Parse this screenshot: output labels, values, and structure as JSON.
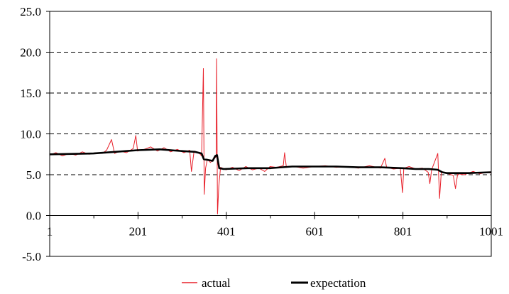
{
  "chart_data": {
    "type": "line",
    "title": "",
    "xlabel": "",
    "ylabel": "",
    "xlim": [
      1,
      1001
    ],
    "ylim": [
      -5,
      25
    ],
    "y_ticks": [
      -5,
      0,
      5,
      10,
      15,
      20,
      25
    ],
    "y_tick_labels": [
      "-5.0",
      "0.0",
      "5.0",
      "10.0",
      "15.0",
      "20.0",
      "25.0"
    ],
    "x_ticks": [
      1,
      201,
      401,
      601,
      801,
      1001
    ],
    "x_tick_labels": [
      "1",
      "201",
      "401",
      "601",
      "801",
      "1001"
    ],
    "grid": "horizontal dashed at 5, 10, 15, 20",
    "legend_position": "bottom",
    "series": [
      {
        "name": "actual",
        "color": "#e8202a",
        "points": [
          [
            1,
            7.4
          ],
          [
            15,
            7.7
          ],
          [
            30,
            7.3
          ],
          [
            45,
            7.6
          ],
          [
            60,
            7.4
          ],
          [
            75,
            7.8
          ],
          [
            90,
            7.5
          ],
          [
            105,
            7.7
          ],
          [
            120,
            7.6
          ],
          [
            130,
            8.0
          ],
          [
            141,
            9.3
          ],
          [
            148,
            7.6
          ],
          [
            160,
            7.9
          ],
          [
            175,
            7.7
          ],
          [
            190,
            8.2
          ],
          [
            196,
            9.8
          ],
          [
            200,
            7.9
          ],
          [
            215,
            8.1
          ],
          [
            230,
            8.4
          ],
          [
            245,
            7.9
          ],
          [
            260,
            8.3
          ],
          [
            275,
            7.8
          ],
          [
            290,
            8.1
          ],
          [
            305,
            7.7
          ],
          [
            318,
            8.0
          ],
          [
            322,
            5.4
          ],
          [
            328,
            7.9
          ],
          [
            340,
            7.6
          ],
          [
            345,
            7.3
          ],
          [
            349,
            18.0
          ],
          [
            351,
            2.6
          ],
          [
            354,
            5.8
          ],
          [
            358,
            6.9
          ],
          [
            365,
            6.5
          ],
          [
            372,
            6.9
          ],
          [
            378,
            7.2
          ],
          [
            379,
            19.2
          ],
          [
            381,
            0.2
          ],
          [
            384,
            3.6
          ],
          [
            388,
            5.9
          ],
          [
            400,
            5.6
          ],
          [
            415,
            5.9
          ],
          [
            430,
            5.5
          ],
          [
            445,
            6.0
          ],
          [
            460,
            5.6
          ],
          [
            475,
            5.8
          ],
          [
            488,
            5.4
          ],
          [
            500,
            6.0
          ],
          [
            515,
            5.9
          ],
          [
            530,
            6.1
          ],
          [
            533,
            7.7
          ],
          [
            537,
            5.9
          ],
          [
            555,
            6.0
          ],
          [
            575,
            5.8
          ],
          [
            600,
            6.0
          ],
          [
            625,
            6.1
          ],
          [
            650,
            5.9
          ],
          [
            675,
            6.0
          ],
          [
            700,
            5.8
          ],
          [
            725,
            6.1
          ],
          [
            750,
            5.8
          ],
          [
            760,
            7.0
          ],
          [
            764,
            5.9
          ],
          [
            780,
            5.7
          ],
          [
            795,
            5.8
          ],
          [
            800,
            2.8
          ],
          [
            803,
            5.8
          ],
          [
            815,
            6.0
          ],
          [
            830,
            5.7
          ],
          [
            845,
            5.8
          ],
          [
            858,
            5.3
          ],
          [
            862,
            3.9
          ],
          [
            866,
            5.6
          ],
          [
            880,
            7.6
          ],
          [
            884,
            2.1
          ],
          [
            888,
            5.4
          ],
          [
            900,
            5.2
          ],
          [
            915,
            4.9
          ],
          [
            920,
            3.3
          ],
          [
            925,
            5.1
          ],
          [
            940,
            5.0
          ],
          [
            960,
            5.4
          ],
          [
            975,
            5.1
          ],
          [
            990,
            5.3
          ],
          [
            1001,
            5.2
          ]
        ]
      },
      {
        "name": "expectation",
        "color": "#000000",
        "points": [
          [
            1,
            7.5
          ],
          [
            100,
            7.6
          ],
          [
            150,
            7.8
          ],
          [
            200,
            8.0
          ],
          [
            250,
            8.1
          ],
          [
            300,
            7.9
          ],
          [
            330,
            7.8
          ],
          [
            345,
            7.6
          ],
          [
            350,
            6.9
          ],
          [
            360,
            6.8
          ],
          [
            370,
            6.7
          ],
          [
            376,
            7.3
          ],
          [
            380,
            7.4
          ],
          [
            385,
            5.8
          ],
          [
            395,
            5.7
          ],
          [
            450,
            5.8
          ],
          [
            500,
            5.8
          ],
          [
            550,
            6.0
          ],
          [
            600,
            6.0
          ],
          [
            650,
            6.0
          ],
          [
            700,
            5.9
          ],
          [
            750,
            5.9
          ],
          [
            800,
            5.8
          ],
          [
            830,
            5.7
          ],
          [
            860,
            5.7
          ],
          [
            880,
            5.6
          ],
          [
            890,
            5.3
          ],
          [
            900,
            5.2
          ],
          [
            950,
            5.2
          ],
          [
            1001,
            5.3
          ]
        ]
      }
    ]
  }
}
